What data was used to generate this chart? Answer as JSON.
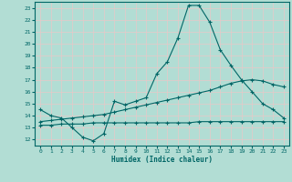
{
  "xlabel": "Humidex (Indice chaleur)",
  "bg_color": "#b2ddd4",
  "grid_color": "#d0ebe5",
  "line_color": "#006666",
  "xlim": [
    -0.5,
    23.5
  ],
  "ylim": [
    11.5,
    23.5
  ],
  "xticks": [
    0,
    1,
    2,
    3,
    4,
    5,
    6,
    7,
    8,
    9,
    10,
    11,
    12,
    13,
    14,
    15,
    16,
    17,
    18,
    19,
    20,
    21,
    22,
    23
  ],
  "yticks": [
    12,
    13,
    14,
    15,
    16,
    17,
    18,
    19,
    20,
    21,
    22,
    23
  ],
  "line1_x": [
    0,
    1,
    2,
    3,
    4,
    5,
    6,
    7,
    8,
    9,
    10,
    11,
    12,
    13,
    14,
    15,
    16,
    17,
    18,
    19,
    20,
    21,
    22,
    23
  ],
  "line1_y": [
    14.5,
    14.0,
    13.8,
    13.0,
    12.2,
    11.9,
    12.5,
    15.2,
    14.9,
    15.2,
    15.5,
    17.5,
    18.5,
    20.5,
    23.2,
    23.2,
    21.8,
    19.5,
    18.2,
    17.0,
    16.0,
    15.0,
    14.5,
    13.8
  ],
  "line2_x": [
    0,
    1,
    2,
    3,
    4,
    5,
    6,
    7,
    8,
    9,
    10,
    11,
    12,
    13,
    14,
    15,
    16,
    17,
    18,
    19,
    20,
    21,
    22,
    23
  ],
  "line2_y": [
    13.5,
    13.6,
    13.7,
    13.8,
    13.9,
    14.0,
    14.1,
    14.3,
    14.5,
    14.7,
    14.9,
    15.1,
    15.3,
    15.5,
    15.7,
    15.9,
    16.1,
    16.4,
    16.7,
    16.9,
    17.0,
    16.9,
    16.6,
    16.4
  ],
  "line3_x": [
    0,
    1,
    2,
    3,
    4,
    5,
    6,
    7,
    8,
    9,
    10,
    11,
    12,
    13,
    14,
    15,
    16,
    17,
    18,
    19,
    20,
    21,
    22,
    23
  ],
  "line3_y": [
    13.2,
    13.2,
    13.3,
    13.3,
    13.3,
    13.4,
    13.4,
    13.4,
    13.4,
    13.4,
    13.4,
    13.4,
    13.4,
    13.4,
    13.4,
    13.5,
    13.5,
    13.5,
    13.5,
    13.5,
    13.5,
    13.5,
    13.5,
    13.5
  ]
}
